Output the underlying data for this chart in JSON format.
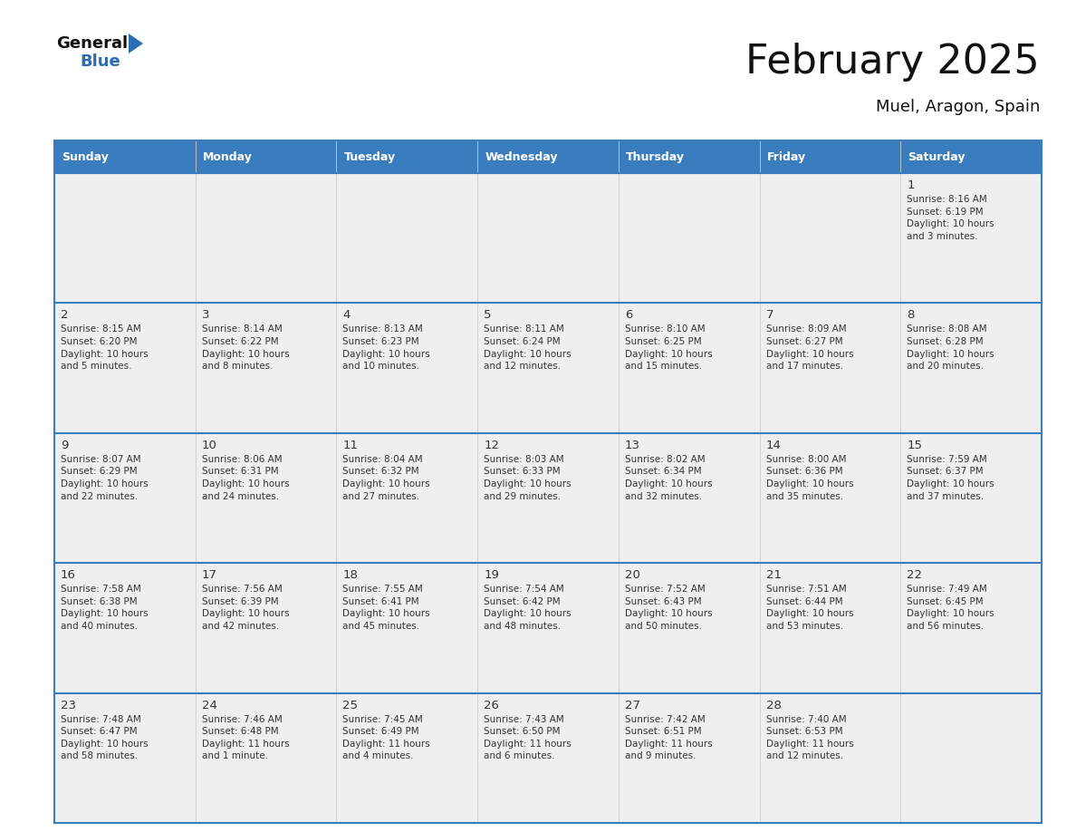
{
  "title": "February 2025",
  "subtitle": "Muel, Aragon, Spain",
  "header_color": "#3a7dbf",
  "header_text_color": "#ffffff",
  "cell_bg_color": "#efefef",
  "border_color": "#3a7dbf",
  "text_color": "#333333",
  "day_headers": [
    "Sunday",
    "Monday",
    "Tuesday",
    "Wednesday",
    "Thursday",
    "Friday",
    "Saturday"
  ],
  "title_color": "#111111",
  "subtitle_color": "#111111",
  "weeks": [
    [
      {
        "day": null,
        "info": ""
      },
      {
        "day": null,
        "info": ""
      },
      {
        "day": null,
        "info": ""
      },
      {
        "day": null,
        "info": ""
      },
      {
        "day": null,
        "info": ""
      },
      {
        "day": null,
        "info": ""
      },
      {
        "day": "1",
        "info": "Sunrise: 8:16 AM\nSunset: 6:19 PM\nDaylight: 10 hours\nand 3 minutes."
      }
    ],
    [
      {
        "day": "2",
        "info": "Sunrise: 8:15 AM\nSunset: 6:20 PM\nDaylight: 10 hours\nand 5 minutes."
      },
      {
        "day": "3",
        "info": "Sunrise: 8:14 AM\nSunset: 6:22 PM\nDaylight: 10 hours\nand 8 minutes."
      },
      {
        "day": "4",
        "info": "Sunrise: 8:13 AM\nSunset: 6:23 PM\nDaylight: 10 hours\nand 10 minutes."
      },
      {
        "day": "5",
        "info": "Sunrise: 8:11 AM\nSunset: 6:24 PM\nDaylight: 10 hours\nand 12 minutes."
      },
      {
        "day": "6",
        "info": "Sunrise: 8:10 AM\nSunset: 6:25 PM\nDaylight: 10 hours\nand 15 minutes."
      },
      {
        "day": "7",
        "info": "Sunrise: 8:09 AM\nSunset: 6:27 PM\nDaylight: 10 hours\nand 17 minutes."
      },
      {
        "day": "8",
        "info": "Sunrise: 8:08 AM\nSunset: 6:28 PM\nDaylight: 10 hours\nand 20 minutes."
      }
    ],
    [
      {
        "day": "9",
        "info": "Sunrise: 8:07 AM\nSunset: 6:29 PM\nDaylight: 10 hours\nand 22 minutes."
      },
      {
        "day": "10",
        "info": "Sunrise: 8:06 AM\nSunset: 6:31 PM\nDaylight: 10 hours\nand 24 minutes."
      },
      {
        "day": "11",
        "info": "Sunrise: 8:04 AM\nSunset: 6:32 PM\nDaylight: 10 hours\nand 27 minutes."
      },
      {
        "day": "12",
        "info": "Sunrise: 8:03 AM\nSunset: 6:33 PM\nDaylight: 10 hours\nand 29 minutes."
      },
      {
        "day": "13",
        "info": "Sunrise: 8:02 AM\nSunset: 6:34 PM\nDaylight: 10 hours\nand 32 minutes."
      },
      {
        "day": "14",
        "info": "Sunrise: 8:00 AM\nSunset: 6:36 PM\nDaylight: 10 hours\nand 35 minutes."
      },
      {
        "day": "15",
        "info": "Sunrise: 7:59 AM\nSunset: 6:37 PM\nDaylight: 10 hours\nand 37 minutes."
      }
    ],
    [
      {
        "day": "16",
        "info": "Sunrise: 7:58 AM\nSunset: 6:38 PM\nDaylight: 10 hours\nand 40 minutes."
      },
      {
        "day": "17",
        "info": "Sunrise: 7:56 AM\nSunset: 6:39 PM\nDaylight: 10 hours\nand 42 minutes."
      },
      {
        "day": "18",
        "info": "Sunrise: 7:55 AM\nSunset: 6:41 PM\nDaylight: 10 hours\nand 45 minutes."
      },
      {
        "day": "19",
        "info": "Sunrise: 7:54 AM\nSunset: 6:42 PM\nDaylight: 10 hours\nand 48 minutes."
      },
      {
        "day": "20",
        "info": "Sunrise: 7:52 AM\nSunset: 6:43 PM\nDaylight: 10 hours\nand 50 minutes."
      },
      {
        "day": "21",
        "info": "Sunrise: 7:51 AM\nSunset: 6:44 PM\nDaylight: 10 hours\nand 53 minutes."
      },
      {
        "day": "22",
        "info": "Sunrise: 7:49 AM\nSunset: 6:45 PM\nDaylight: 10 hours\nand 56 minutes."
      }
    ],
    [
      {
        "day": "23",
        "info": "Sunrise: 7:48 AM\nSunset: 6:47 PM\nDaylight: 10 hours\nand 58 minutes."
      },
      {
        "day": "24",
        "info": "Sunrise: 7:46 AM\nSunset: 6:48 PM\nDaylight: 11 hours\nand 1 minute."
      },
      {
        "day": "25",
        "info": "Sunrise: 7:45 AM\nSunset: 6:49 PM\nDaylight: 11 hours\nand 4 minutes."
      },
      {
        "day": "26",
        "info": "Sunrise: 7:43 AM\nSunset: 6:50 PM\nDaylight: 11 hours\nand 6 minutes."
      },
      {
        "day": "27",
        "info": "Sunrise: 7:42 AM\nSunset: 6:51 PM\nDaylight: 11 hours\nand 9 minutes."
      },
      {
        "day": "28",
        "info": "Sunrise: 7:40 AM\nSunset: 6:53 PM\nDaylight: 11 hours\nand 12 minutes."
      },
      {
        "day": null,
        "info": ""
      }
    ]
  ],
  "logo_general_color": "#111111",
  "logo_blue_color": "#2a6db5",
  "logo_triangle_color": "#2a6db5"
}
